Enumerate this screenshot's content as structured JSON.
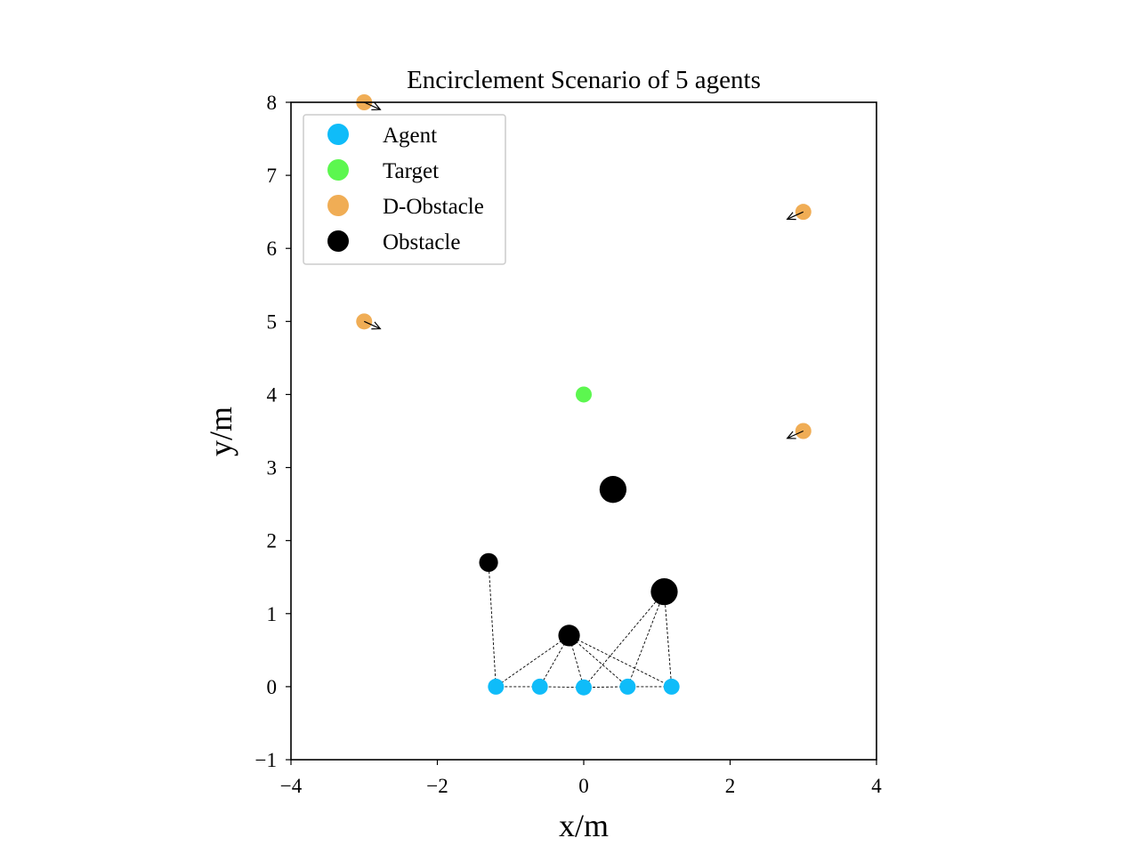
{
  "chart_data": {
    "type": "scatter",
    "title": "Encirclement Scenario of 5 agents",
    "xlabel": "x/m",
    "ylabel": "y/m",
    "xlim": [
      -4,
      4
    ],
    "ylim": [
      -1,
      8
    ],
    "xticks": [
      -4,
      -2,
      0,
      2,
      4
    ],
    "xtick_labels": [
      "−4",
      "−2",
      "0",
      "2",
      "4"
    ],
    "yticks": [
      -1,
      0,
      1,
      2,
      3,
      4,
      5,
      6,
      7,
      8
    ],
    "ytick_labels": [
      "−1",
      "0",
      "1",
      "2",
      "3",
      "4",
      "5",
      "6",
      "7",
      "8"
    ],
    "grid": false,
    "legend_position": "top-left",
    "legend": [
      {
        "label": "Agent",
        "color": "#0fbcf9"
      },
      {
        "label": "Target",
        "color": "#5cf74f"
      },
      {
        "label": "D-Obstacle",
        "color": "#f0ad55"
      },
      {
        "label": "Obstacle",
        "color": "#000000"
      }
    ],
    "agents": [
      {
        "x": -1.2,
        "y": 0.0
      },
      {
        "x": -0.6,
        "y": 0.0
      },
      {
        "x": 0.0,
        "y": -0.01
      },
      {
        "x": 0.6,
        "y": 0.0
      },
      {
        "x": 1.2,
        "y": 0.0
      }
    ],
    "target": {
      "x": 0.0,
      "y": 4.0
    },
    "d_obstacles": [
      {
        "x": -3.0,
        "y": 8.0,
        "vx": 0.22,
        "vy": -0.1
      },
      {
        "x": -3.0,
        "y": 5.0,
        "vx": 0.22,
        "vy": -0.1
      },
      {
        "x": 3.0,
        "y": 6.5,
        "vx": -0.22,
        "vy": -0.1
      },
      {
        "x": 3.0,
        "y": 3.5,
        "vx": -0.22,
        "vy": -0.1
      }
    ],
    "obstacles": [
      {
        "x": 0.4,
        "y": 2.7,
        "r": 0.2
      },
      {
        "x": -1.3,
        "y": 1.7,
        "r": 0.14
      },
      {
        "x": 1.1,
        "y": 1.3,
        "r": 0.2
      },
      {
        "x": -0.2,
        "y": 0.7,
        "r": 0.16
      }
    ],
    "links": [
      {
        "obstacle": 1,
        "agents": [
          0
        ]
      },
      {
        "obstacle": 3,
        "agents": [
          0,
          1,
          2,
          3,
          4
        ]
      },
      {
        "obstacle": 2,
        "agents": [
          2,
          3,
          4
        ]
      }
    ]
  }
}
